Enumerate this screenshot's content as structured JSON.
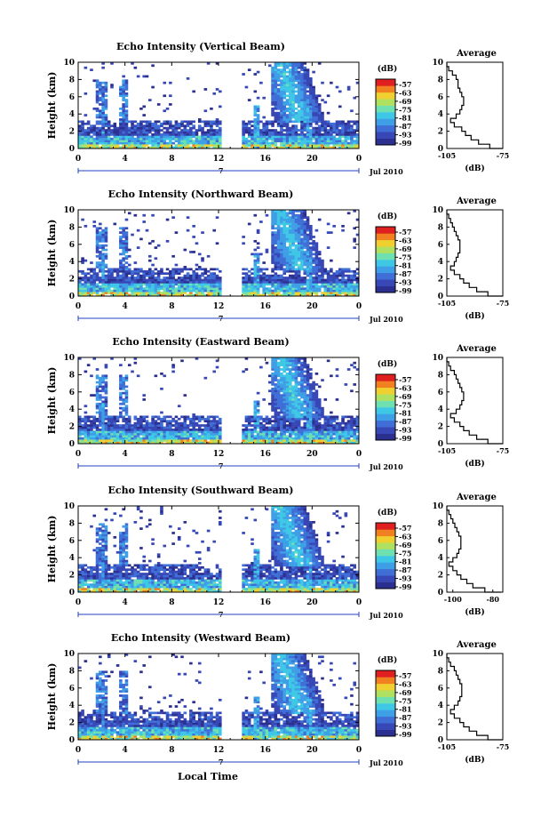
{
  "chart_data": [
    {
      "type": "heatmap",
      "title": "Echo Intensity (Vertical Beam)",
      "ylabel": "Height (km)",
      "y_ticks": [
        0,
        2,
        4,
        6,
        8,
        10
      ],
      "ylim": [
        0,
        10
      ],
      "x_ticks": [
        "0",
        "4",
        "8",
        "12",
        "16",
        "20",
        "0"
      ],
      "xlim": [
        0,
        24
      ],
      "date_marker": "7",
      "date_label": "Jul 2010",
      "colorbar": {
        "unit": "(dB)",
        "labels": [
          "-57",
          "-63",
          "-69",
          "-75",
          "-81",
          "-87",
          "-93",
          "-99"
        ]
      },
      "average": {
        "title": "Average",
        "xlabel": "(dB)",
        "x_ticks": [
          "-105",
          "-75"
        ],
        "xlim": [
          -105,
          -75
        ],
        "y_ticks": [
          0,
          2,
          4,
          6,
          8,
          10
        ],
        "profile": [
          [
            0,
            -74
          ],
          [
            0.5,
            -82
          ],
          [
            1,
            -88
          ],
          [
            1.5,
            -92
          ],
          [
            2,
            -95
          ],
          [
            2.5,
            -97
          ],
          [
            3,
            -101
          ],
          [
            3.5,
            -103
          ],
          [
            4,
            -100
          ],
          [
            4.5,
            -98
          ],
          [
            5,
            -97
          ],
          [
            5.5,
            -96
          ],
          [
            6,
            -96
          ],
          [
            6.5,
            -97
          ],
          [
            7,
            -98
          ],
          [
            7.5,
            -99
          ],
          [
            8,
            -99
          ],
          [
            8.5,
            -100
          ],
          [
            9,
            -102
          ],
          [
            9.5,
            -104
          ],
          [
            10,
            -105
          ]
        ]
      }
    },
    {
      "type": "heatmap",
      "title": "Echo Intensity (Northward Beam)",
      "ylabel": "Height (km)",
      "y_ticks": [
        0,
        2,
        4,
        6,
        8,
        10
      ],
      "ylim": [
        0,
        10
      ],
      "x_ticks": [
        "0",
        "4",
        "8",
        "12",
        "16",
        "20",
        "0"
      ],
      "xlim": [
        0,
        24
      ],
      "date_marker": "7",
      "date_label": "Jul 2010",
      "colorbar": {
        "unit": "(dB)",
        "labels": [
          "-57",
          "-63",
          "-69",
          "-75",
          "-81",
          "-87",
          "-93",
          "-99"
        ]
      },
      "average": {
        "title": "Average",
        "xlabel": "(dB)",
        "x_ticks": [
          "-105",
          "-75"
        ],
        "xlim": [
          -105,
          -75
        ],
        "y_ticks": [
          0,
          2,
          4,
          6,
          8,
          10
        ],
        "profile": [
          [
            0,
            -74
          ],
          [
            0.5,
            -83
          ],
          [
            1,
            -89
          ],
          [
            1.5,
            -93
          ],
          [
            2,
            -96
          ],
          [
            2.5,
            -98
          ],
          [
            3,
            -101
          ],
          [
            3.5,
            -103
          ],
          [
            4,
            -101
          ],
          [
            4.5,
            -100
          ],
          [
            5,
            -99
          ],
          [
            5.5,
            -98
          ],
          [
            6,
            -98
          ],
          [
            6.5,
            -98
          ],
          [
            7,
            -99
          ],
          [
            7.5,
            -100
          ],
          [
            8,
            -101
          ],
          [
            8.5,
            -102
          ],
          [
            9,
            -103
          ],
          [
            9.5,
            -104
          ],
          [
            10,
            -105
          ]
        ]
      }
    },
    {
      "type": "heatmap",
      "title": "Echo Intensity (Eastward Beam)",
      "ylabel": "Height (km)",
      "y_ticks": [
        0,
        2,
        4,
        6,
        8,
        10
      ],
      "ylim": [
        0,
        10
      ],
      "x_ticks": [
        "0",
        "4",
        "8",
        "12",
        "16",
        "20",
        "0"
      ],
      "xlim": [
        0,
        24
      ],
      "date_marker": "7",
      "date_label": "Jul 2010",
      "colorbar": {
        "unit": "(dB)",
        "labels": [
          "-57",
          "-63",
          "-69",
          "-75",
          "-81",
          "-87",
          "-93",
          "-99"
        ]
      },
      "average": {
        "title": "Average",
        "xlabel": "(dB)",
        "x_ticks": [
          "-105",
          "-75"
        ],
        "xlim": [
          -105,
          -75
        ],
        "y_ticks": [
          0,
          2,
          4,
          6,
          8,
          10
        ],
        "profile": [
          [
            0,
            -75
          ],
          [
            0.5,
            -83
          ],
          [
            1,
            -89
          ],
          [
            1.5,
            -93
          ],
          [
            2,
            -96
          ],
          [
            2.5,
            -98
          ],
          [
            3,
            -101
          ],
          [
            3.5,
            -103
          ],
          [
            4,
            -100
          ],
          [
            4.5,
            -98
          ],
          [
            5,
            -97
          ],
          [
            5.5,
            -96
          ],
          [
            6,
            -96
          ],
          [
            6.5,
            -97
          ],
          [
            7,
            -98
          ],
          [
            7.5,
            -99
          ],
          [
            8,
            -100
          ],
          [
            8.5,
            -101
          ],
          [
            9,
            -103
          ],
          [
            9.5,
            -104
          ],
          [
            10,
            -105
          ]
        ]
      }
    },
    {
      "type": "heatmap",
      "title": "Echo Intensity (Southward Beam)",
      "ylabel": "Height (km)",
      "y_ticks": [
        0,
        2,
        4,
        6,
        8,
        10
      ],
      "ylim": [
        0,
        10
      ],
      "x_ticks": [
        "0",
        "4",
        "8",
        "12",
        "16",
        "20",
        "0"
      ],
      "xlim": [
        0,
        24
      ],
      "date_marker": "7",
      "date_label": "Jul 2010",
      "colorbar": {
        "unit": "(dB)",
        "labels": [
          "-57",
          "-63",
          "-69",
          "-75",
          "-81",
          "-87",
          "-93",
          "-99"
        ]
      },
      "average": {
        "title": "Average",
        "xlabel": "(dB)",
        "x_ticks": [
          "-100",
          "-80"
        ],
        "xlim": [
          -103,
          -75
        ],
        "y_ticks": [
          0,
          2,
          4,
          6,
          8,
          10
        ],
        "profile": [
          [
            0,
            -76
          ],
          [
            0.5,
            -84
          ],
          [
            1,
            -90
          ],
          [
            1.5,
            -93
          ],
          [
            2,
            -96
          ],
          [
            2.5,
            -98
          ],
          [
            3,
            -100
          ],
          [
            3.5,
            -102
          ],
          [
            4,
            -100
          ],
          [
            4.5,
            -98
          ],
          [
            5,
            -97
          ],
          [
            5.5,
            -96
          ],
          [
            6,
            -96
          ],
          [
            6.5,
            -96
          ],
          [
            7,
            -97
          ],
          [
            7.5,
            -98
          ],
          [
            8,
            -99
          ],
          [
            8.5,
            -100
          ],
          [
            9,
            -101
          ],
          [
            9.5,
            -102
          ],
          [
            10,
            -103
          ]
        ]
      }
    },
    {
      "type": "heatmap",
      "title": "Echo Intensity (Westward Beam)",
      "ylabel": "Height (km)",
      "y_ticks": [
        0,
        2,
        4,
        6,
        8,
        10
      ],
      "ylim": [
        0,
        10
      ],
      "x_ticks": [
        "0",
        "4",
        "8",
        "12",
        "16",
        "20",
        "0"
      ],
      "xlim": [
        0,
        24
      ],
      "date_marker": "7",
      "date_label": "Jul 2010",
      "xlabel": "Local Time",
      "colorbar": {
        "unit": "(dB)",
        "labels": [
          "-57",
          "-63",
          "-69",
          "-75",
          "-81",
          "-87",
          "-93",
          "-99"
        ]
      },
      "average": {
        "title": "Average",
        "xlabel": "(dB)",
        "x_ticks": [
          "-105",
          "-75"
        ],
        "xlim": [
          -105,
          -75
        ],
        "y_ticks": [
          0,
          2,
          4,
          6,
          8,
          10
        ],
        "profile": [
          [
            0,
            -75
          ],
          [
            0.5,
            -83
          ],
          [
            1,
            -89
          ],
          [
            1.5,
            -93
          ],
          [
            2,
            -96
          ],
          [
            2.5,
            -98
          ],
          [
            3,
            -101
          ],
          [
            3.5,
            -103
          ],
          [
            4,
            -101
          ],
          [
            4.5,
            -99
          ],
          [
            5,
            -98
          ],
          [
            5.5,
            -97
          ],
          [
            6,
            -97
          ],
          [
            6.5,
            -97
          ],
          [
            7,
            -98
          ],
          [
            7.5,
            -99
          ],
          [
            8,
            -100
          ],
          [
            8.5,
            -101
          ],
          [
            9,
            -103
          ],
          [
            9.5,
            -104
          ],
          [
            10,
            -105
          ]
        ]
      }
    }
  ],
  "colors": {
    "colormap": [
      "#2b2f8f",
      "#3747b5",
      "#3f6fd6",
      "#3f9fe6",
      "#3fc7e6",
      "#6fe0b0",
      "#b0e060",
      "#f0d030",
      "#f08020",
      "#e02020"
    ]
  }
}
